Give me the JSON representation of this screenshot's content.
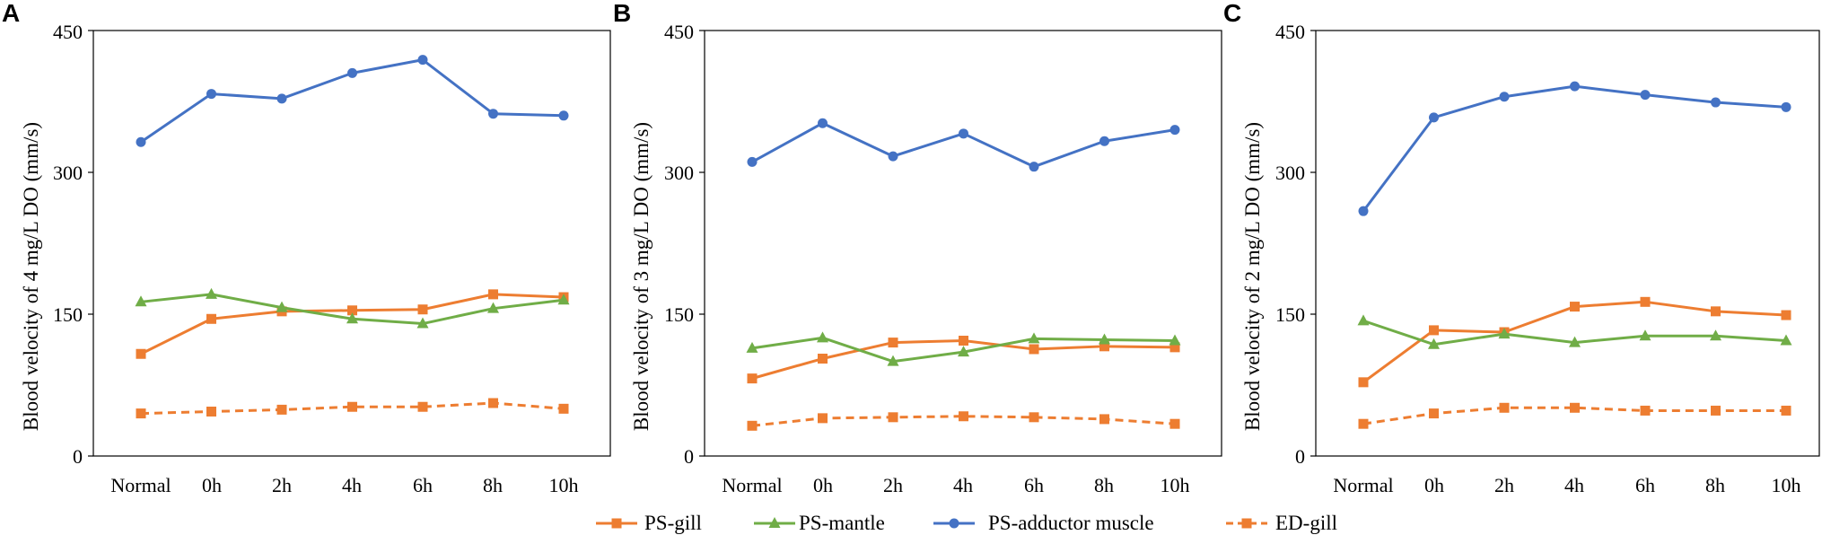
{
  "chart_data": [
    {
      "panel": "A",
      "type": "line",
      "ylabel": "Blood velocity of 4 mg/L DO (mm/s)",
      "ylim": [
        0,
        450
      ],
      "yticks": [
        "0",
        "150",
        "300",
        "450"
      ],
      "categories": [
        "Normal",
        "0h",
        "2h",
        "4h",
        "6h",
        "8h",
        "10h"
      ],
      "series": [
        {
          "name": "PS-gill",
          "values": [
            108,
            145,
            153,
            154,
            155,
            171,
            168
          ]
        },
        {
          "name": "PS-mantle",
          "values": [
            163,
            171,
            157,
            145,
            140,
            156,
            165
          ]
        },
        {
          "name": "PS-adductor muscle",
          "values": [
            332,
            383,
            378,
            405,
            419,
            362,
            360
          ]
        },
        {
          "name": "ED-gill",
          "values": [
            45,
            47,
            49,
            52,
            52,
            56,
            50
          ]
        }
      ]
    },
    {
      "panel": "B",
      "type": "line",
      "ylabel": "Blood velocity of 3 mg/L DO (mm/s)",
      "ylim": [
        0,
        450
      ],
      "yticks": [
        "0",
        "150",
        "300",
        "450"
      ],
      "categories": [
        "Normal",
        "0h",
        "2h",
        "4h",
        "6h",
        "8h",
        "10h"
      ],
      "series": [
        {
          "name": "PS-gill",
          "values": [
            82,
            103,
            120,
            122,
            113,
            116,
            115
          ]
        },
        {
          "name": "PS-mantle",
          "values": [
            114,
            125,
            100,
            110,
            124,
            123,
            122
          ]
        },
        {
          "name": "PS-adductor muscle",
          "values": [
            311,
            352,
            317,
            341,
            306,
            333,
            345
          ]
        },
        {
          "name": "ED-gill",
          "values": [
            32,
            40,
            41,
            42,
            41,
            39,
            34
          ]
        }
      ]
    },
    {
      "panel": "C",
      "type": "line",
      "ylabel": "Blood velocity of 2 mg/L DO (mm/s)",
      "ylim": [
        0,
        450
      ],
      "yticks": [
        "0",
        "150",
        "300",
        "450"
      ],
      "categories": [
        "Normal",
        "0h",
        "2h",
        "4h",
        "6h",
        "8h",
        "10h"
      ],
      "series": [
        {
          "name": "PS-gill",
          "values": [
            78,
            133,
            131,
            158,
            163,
            153,
            149
          ]
        },
        {
          "name": "PS-mantle",
          "values": [
            143,
            118,
            129,
            120,
            127,
            127,
            122
          ]
        },
        {
          "name": "PS-adductor muscle",
          "values": [
            259,
            358,
            380,
            391,
            382,
            374,
            369
          ]
        },
        {
          "name": "ED-gill",
          "values": [
            34,
            45,
            51,
            51,
            48,
            48,
            48
          ]
        }
      ]
    }
  ],
  "legend": [
    {
      "name": "PS-gill",
      "label": "PS-gill",
      "color": "#ED7D31",
      "marker": "square",
      "dash": false
    },
    {
      "name": "PS-mantle",
      "label": "PS-mantle",
      "color": "#70AD47",
      "marker": "triangle",
      "dash": false
    },
    {
      "name": "PS-adductor muscle",
      "label": "PS-adductor muscle",
      "color": "#4472C4",
      "marker": "circle",
      "dash": false
    },
    {
      "name": "ED-gill",
      "label": "ED-gill",
      "color": "#ED7D31",
      "marker": "square",
      "dash": true
    }
  ]
}
